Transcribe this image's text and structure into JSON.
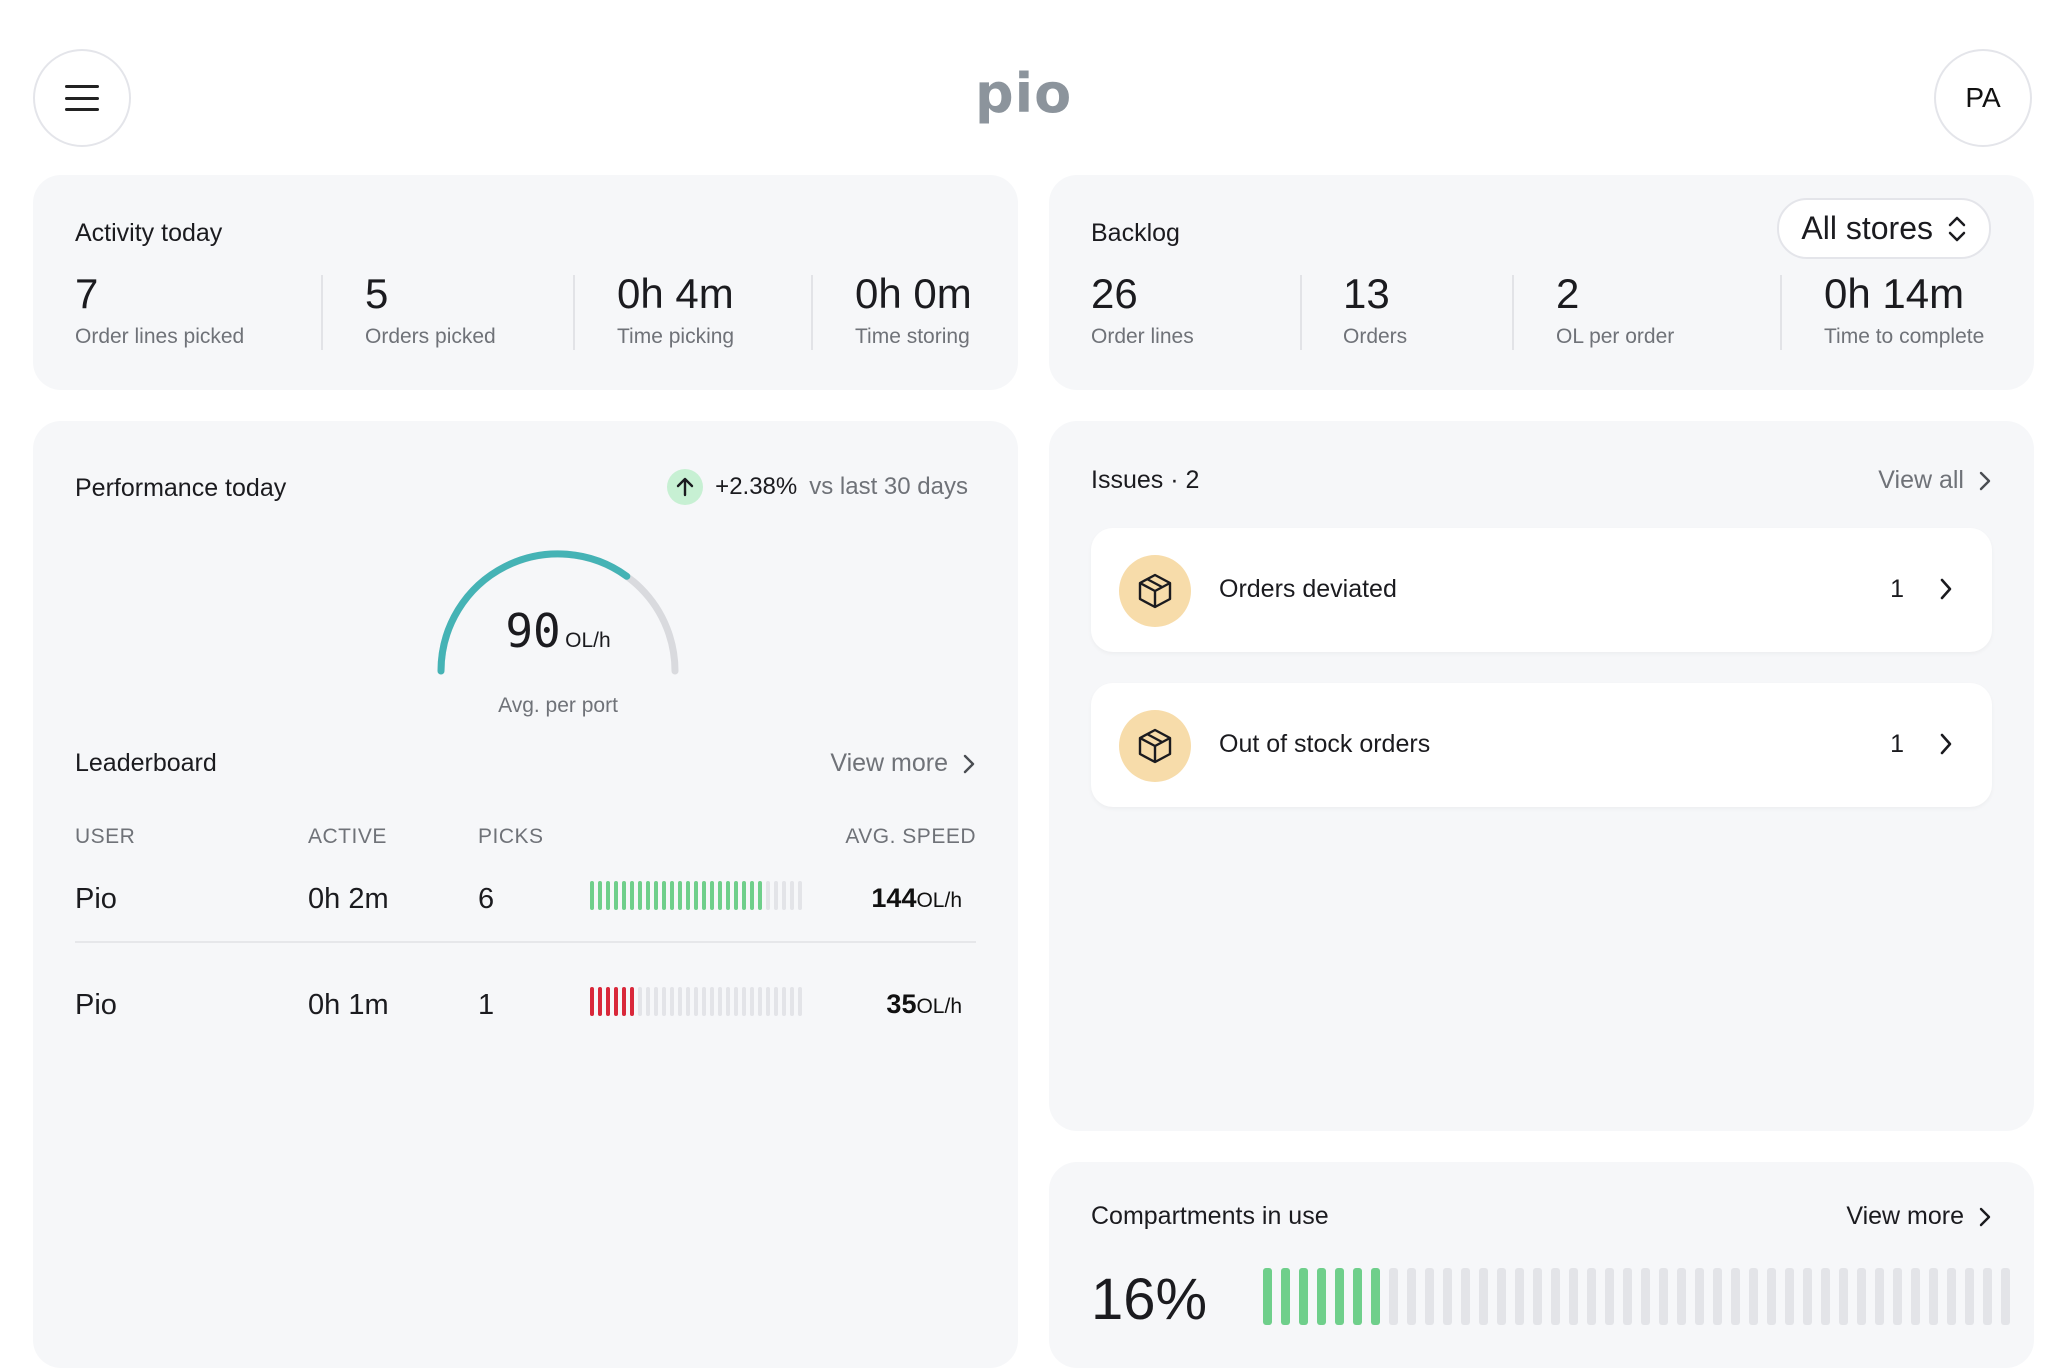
{
  "header": {
    "logo": "pio",
    "profile_initials": "PA"
  },
  "activity": {
    "title": "Activity today",
    "stats": [
      {
        "value": "7",
        "label": "Order lines picked"
      },
      {
        "value": "5",
        "label": "Orders picked"
      },
      {
        "value": "0h 4m",
        "label": "Time picking"
      },
      {
        "value": "0h 0m",
        "label": "Time storing"
      }
    ]
  },
  "backlog": {
    "title": "Backlog",
    "store_select": "All stores",
    "stats": [
      {
        "value": "26",
        "label": "Order lines"
      },
      {
        "value": "13",
        "label": "Orders"
      },
      {
        "value": "2",
        "label": "OL per order"
      },
      {
        "value": "0h 14m",
        "label": "Time to complete"
      }
    ]
  },
  "performance": {
    "title": "Performance today",
    "trend_value": "+2.38%",
    "trend_text": "vs last 30 days",
    "gauge": {
      "value": "90",
      "unit": "OL/h",
      "label": "Avg. per port",
      "fraction": 0.7
    }
  },
  "leaderboard": {
    "title": "Leaderboard",
    "view_more": "View more",
    "columns": [
      "USER",
      "ACTIVE",
      "PICKS",
      "AVG. SPEED"
    ],
    "rows": [
      {
        "user": "Pio",
        "active": "0h 2m",
        "picks": "6",
        "speed": "144",
        "unit": "OL/h",
        "bar_filled": 22,
        "bar_color": "green"
      },
      {
        "user": "Pio",
        "active": "0h 1m",
        "picks": "1",
        "speed": "35",
        "unit": "OL/h",
        "bar_filled": 6,
        "bar_color": "red"
      }
    ],
    "bar_total": 27
  },
  "issues": {
    "title": "Issues · 2",
    "view_all": "View all",
    "items": [
      {
        "name": "Orders deviated",
        "count": "1"
      },
      {
        "name": "Out of stock orders",
        "count": "1"
      }
    ]
  },
  "compartments": {
    "title": "Compartments in use",
    "view_more": "View more",
    "value": "16%",
    "bars_total": 42,
    "bars_filled": 7
  },
  "colors": {
    "accent_green": "#6fcf8b",
    "alert_red": "#d9283a",
    "gauge_teal": "#45b3b5",
    "issue_icon_bg": "#f7dcaa"
  }
}
